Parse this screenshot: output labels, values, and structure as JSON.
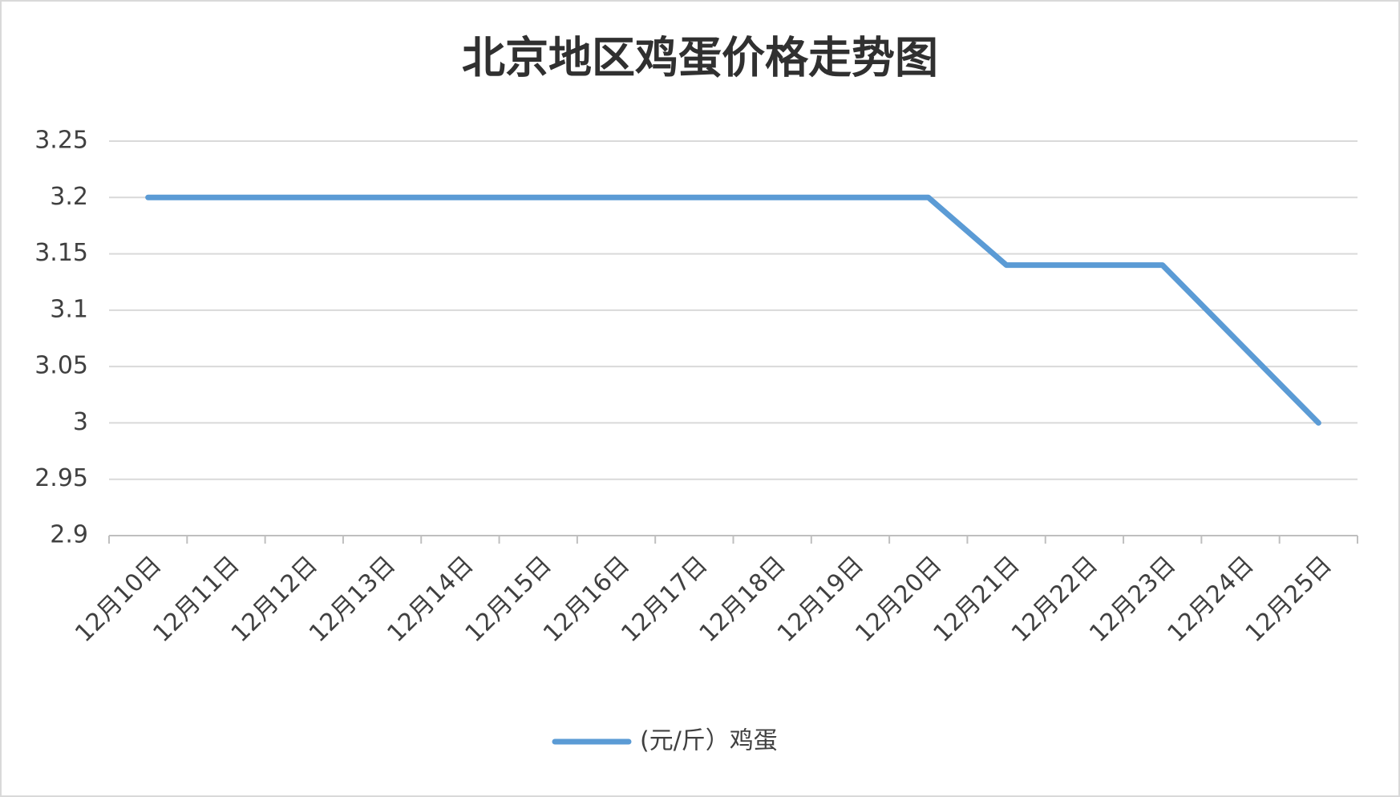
{
  "chart_data": {
    "type": "line",
    "title": "北京地区鸡蛋价格走势图",
    "categories": [
      "12月10日",
      "12月11日",
      "12月12日",
      "12月13日",
      "12月14日",
      "12月15日",
      "12月16日",
      "12月17日",
      "12月18日",
      "12月19日",
      "12月20日",
      "12月21日",
      "12月22日",
      "12月23日",
      "12月24日",
      "12月25日"
    ],
    "series": [
      {
        "name": "(元/斤）鸡蛋",
        "color": "#5b9bd5",
        "values": [
          3.2,
          3.2,
          3.2,
          3.2,
          3.2,
          3.2,
          3.2,
          3.2,
          3.2,
          3.2,
          3.2,
          3.14,
          3.14,
          3.14,
          3.07,
          3.0
        ]
      }
    ],
    "ylim": [
      2.9,
      3.25
    ],
    "yticks": [
      2.9,
      2.95,
      3,
      3.05,
      3.1,
      3.15,
      3.2,
      3.25
    ],
    "grid": true,
    "legend": "bottom"
  }
}
